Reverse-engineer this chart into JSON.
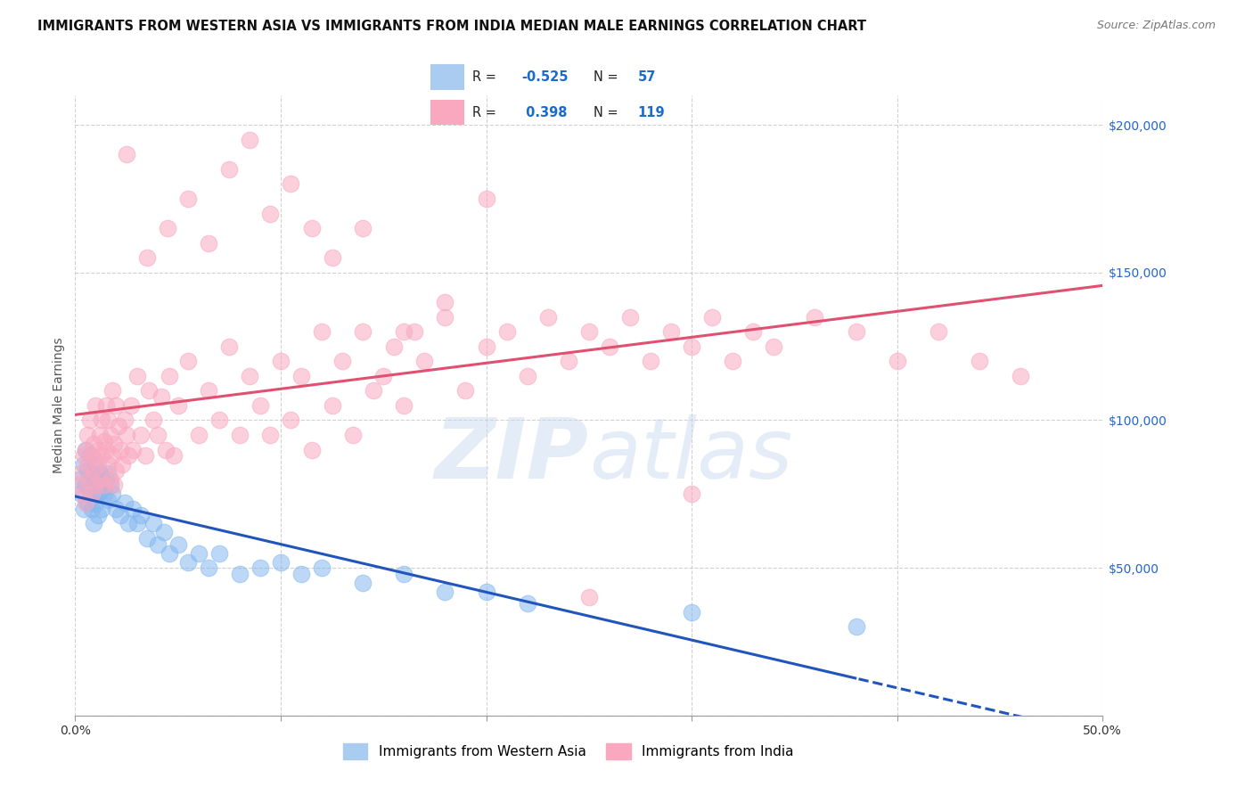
{
  "title": "IMMIGRANTS FROM WESTERN ASIA VS IMMIGRANTS FROM INDIA MEDIAN MALE EARNINGS CORRELATION CHART",
  "source": "Source: ZipAtlas.com",
  "ylabel": "Median Male Earnings",
  "xlim": [
    0.0,
    0.5
  ],
  "ylim": [
    0,
    210000
  ],
  "legend_R_color": "#1a6bd0",
  "regression_line_colors": [
    "#2255bb",
    "#e05070"
  ],
  "watermark": "ZIPatlas",
  "background_color": "#ffffff",
  "grid_color": "#cccccc",
  "title_fontsize": 10.5,
  "axis_label_fontsize": 10,
  "tick_fontsize": 10,
  "series": [
    {
      "name": "Immigrants from Western Asia",
      "color": "#85b8f0",
      "R": -0.525,
      "N": 57,
      "x": [
        0.002,
        0.003,
        0.004,
        0.004,
        0.005,
        0.005,
        0.006,
        0.006,
        0.007,
        0.007,
        0.008,
        0.008,
        0.009,
        0.009,
        0.01,
        0.01,
        0.01,
        0.011,
        0.011,
        0.012,
        0.012,
        0.013,
        0.014,
        0.015,
        0.016,
        0.016,
        0.017,
        0.018,
        0.02,
        0.022,
        0.024,
        0.026,
        0.028,
        0.03,
        0.032,
        0.035,
        0.038,
        0.04,
        0.043,
        0.046,
        0.05,
        0.055,
        0.06,
        0.065,
        0.07,
        0.08,
        0.09,
        0.1,
        0.11,
        0.12,
        0.14,
        0.16,
        0.18,
        0.2,
        0.22,
        0.3,
        0.38
      ],
      "y": [
        80000,
        75000,
        85000,
        70000,
        78000,
        90000,
        83000,
        72000,
        88000,
        76000,
        82000,
        70000,
        78000,
        65000,
        85000,
        72000,
        80000,
        75000,
        68000,
        82000,
        76000,
        70000,
        75000,
        80000,
        73000,
        82000,
        78000,
        75000,
        70000,
        68000,
        72000,
        65000,
        70000,
        65000,
        68000,
        60000,
        65000,
        58000,
        62000,
        55000,
        58000,
        52000,
        55000,
        50000,
        55000,
        48000,
        50000,
        52000,
        48000,
        50000,
        45000,
        48000,
        42000,
        42000,
        38000,
        35000,
        30000
      ]
    },
    {
      "name": "Immigrants from India",
      "color": "#f9a8c0",
      "R": 0.398,
      "N": 119,
      "x": [
        0.002,
        0.003,
        0.004,
        0.004,
        0.005,
        0.005,
        0.006,
        0.006,
        0.007,
        0.007,
        0.008,
        0.008,
        0.009,
        0.009,
        0.01,
        0.01,
        0.011,
        0.011,
        0.012,
        0.012,
        0.013,
        0.013,
        0.014,
        0.014,
        0.015,
        0.015,
        0.016,
        0.016,
        0.017,
        0.017,
        0.018,
        0.018,
        0.019,
        0.019,
        0.02,
        0.02,
        0.021,
        0.022,
        0.023,
        0.024,
        0.025,
        0.026,
        0.027,
        0.028,
        0.03,
        0.032,
        0.034,
        0.036,
        0.038,
        0.04,
        0.042,
        0.044,
        0.046,
        0.048,
        0.05,
        0.055,
        0.06,
        0.065,
        0.07,
        0.075,
        0.08,
        0.085,
        0.09,
        0.095,
        0.1,
        0.105,
        0.11,
        0.115,
        0.12,
        0.125,
        0.13,
        0.135,
        0.14,
        0.145,
        0.15,
        0.155,
        0.16,
        0.165,
        0.17,
        0.18,
        0.19,
        0.2,
        0.21,
        0.22,
        0.23,
        0.24,
        0.25,
        0.26,
        0.27,
        0.28,
        0.29,
        0.3,
        0.31,
        0.32,
        0.33,
        0.34,
        0.36,
        0.38,
        0.4,
        0.42,
        0.44,
        0.46,
        0.025,
        0.035,
        0.045,
        0.055,
        0.065,
        0.075,
        0.085,
        0.095,
        0.105,
        0.115,
        0.125,
        0.14,
        0.16,
        0.18,
        0.2,
        0.25,
        0.3
      ],
      "y": [
        78000,
        82000,
        75000,
        88000,
        72000,
        90000,
        85000,
        95000,
        80000,
        100000,
        88000,
        75000,
        92000,
        83000,
        78000,
        105000,
        90000,
        85000,
        95000,
        80000,
        100000,
        88000,
        93000,
        78000,
        105000,
        90000,
        85000,
        100000,
        95000,
        80000,
        110000,
        88000,
        92000,
        78000,
        105000,
        83000,
        98000,
        90000,
        85000,
        100000,
        95000,
        88000,
        105000,
        90000,
        115000,
        95000,
        88000,
        110000,
        100000,
        95000,
        108000,
        90000,
        115000,
        88000,
        105000,
        120000,
        95000,
        110000,
        100000,
        125000,
        95000,
        115000,
        105000,
        95000,
        120000,
        100000,
        115000,
        90000,
        130000,
        105000,
        120000,
        95000,
        130000,
        110000,
        115000,
        125000,
        105000,
        130000,
        120000,
        135000,
        110000,
        125000,
        130000,
        115000,
        135000,
        120000,
        130000,
        125000,
        135000,
        120000,
        130000,
        125000,
        135000,
        120000,
        130000,
        125000,
        135000,
        130000,
        120000,
        130000,
        120000,
        115000,
        190000,
        155000,
        165000,
        175000,
        160000,
        185000,
        195000,
        170000,
        180000,
        165000,
        155000,
        165000,
        130000,
        140000,
        175000,
        40000,
        75000
      ]
    }
  ]
}
